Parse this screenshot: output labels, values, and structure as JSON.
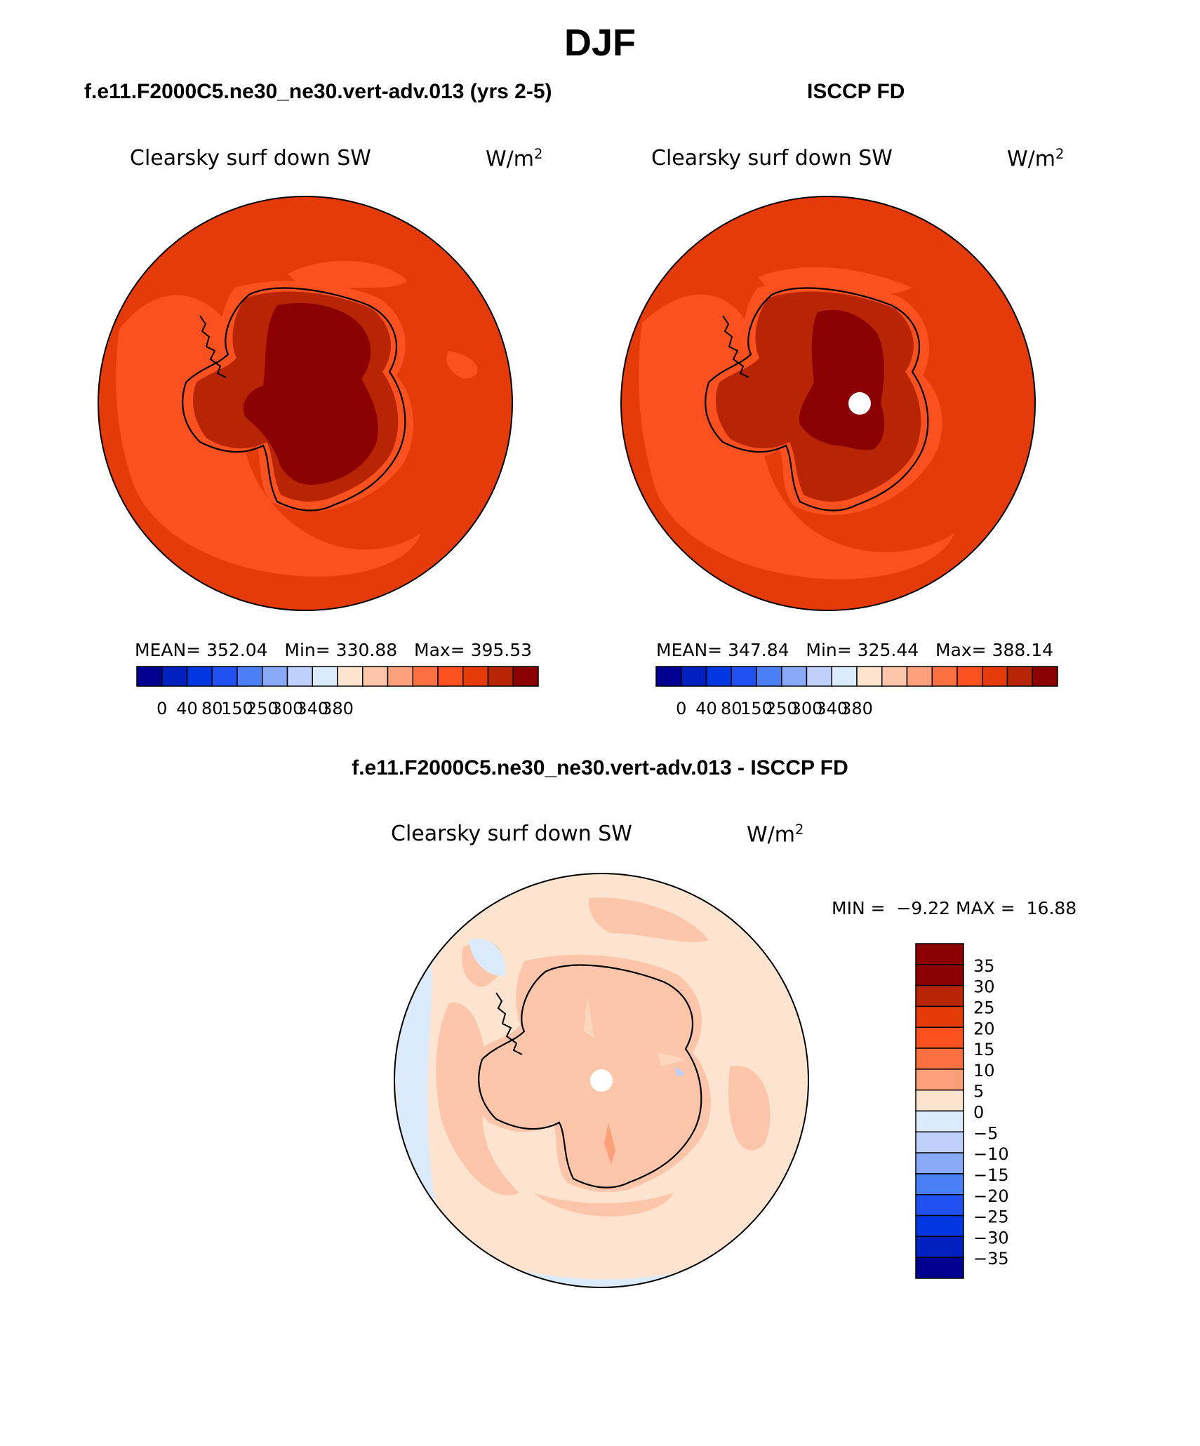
{
  "title": "DJF",
  "panels": {
    "model": {
      "heading": "f.e11.F2000C5.ne30_ne30.vert-adv.013 (yrs 2-5)",
      "variable": "Clearsky surf down SW",
      "units": "W/m",
      "units_exp": "2",
      "stats": {
        "mean_label": "MEAN=",
        "mean": "352.04",
        "min_label": "Min=",
        "min": "330.88",
        "max_label": "Max=",
        "max": "395.53"
      }
    },
    "obs": {
      "heading": "ISCCP FD",
      "variable": "Clearsky surf down SW",
      "units": "W/m",
      "units_exp": "2",
      "stats": {
        "mean_label": "MEAN=",
        "mean": "347.84",
        "min_label": "Min=",
        "min": "325.44",
        "max_label": "Max=",
        "max": "388.14"
      }
    },
    "diff": {
      "heading": "f.e11.F2000C5.ne30_ne30.vert-adv.013 - ISCCP FD",
      "variable": "Clearsky surf down SW",
      "units": "W/m",
      "units_exp": "2",
      "minmax": {
        "min_label": "MIN =",
        "min": "−9.22",
        "max_label": "MAX =",
        "max": "16.88"
      }
    }
  },
  "colorbars": {
    "absolute": {
      "colors": [
        "#000090",
        "#0020c0",
        "#0036e0",
        "#2050f0",
        "#4a7ff5",
        "#8aaaf8",
        "#c0d0fc",
        "#dcebfb",
        "#fde4d0",
        "#fdc6aa",
        "#fca07c",
        "#fb7040",
        "#fb5020",
        "#e53a0a",
        "#b82505",
        "#8b0000"
      ],
      "ticks": [
        "0",
        "40",
        "80",
        "150",
        "250",
        "300",
        "340",
        "380"
      ]
    },
    "difference": {
      "colors": [
        "#8b0000",
        "#b82505",
        "#e53a0a",
        "#fb5020",
        "#fb7040",
        "#fca07c",
        "#fde4d0",
        "#dcebfb",
        "#c0d0fc",
        "#8aaaf8",
        "#4a7ff5",
        "#2050f0",
        "#0036e0",
        "#0020c0",
        "#000090"
      ],
      "ticks": [
        "35",
        "30",
        "25",
        "20",
        "15",
        "10",
        "5",
        "0",
        "−5",
        "−10",
        "−15",
        "−20",
        "−25",
        "−30",
        "−35"
      ]
    }
  }
}
